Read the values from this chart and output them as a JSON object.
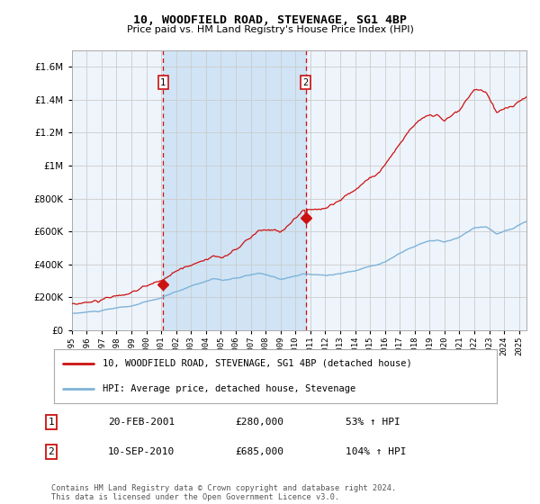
{
  "title": "10, WOODFIELD ROAD, STEVENAGE, SG1 4BP",
  "subtitle": "Price paid vs. HM Land Registry's House Price Index (HPI)",
  "legend_line1": "10, WOODFIELD ROAD, STEVENAGE, SG1 4BP (detached house)",
  "legend_line2": "HPI: Average price, detached house, Stevenage",
  "annotation1_label": "1",
  "annotation1_date": "20-FEB-2001",
  "annotation1_price": "£280,000",
  "annotation1_pct": "53% ↑ HPI",
  "annotation1_year": 2001.13,
  "annotation1_value": 280000,
  "annotation2_label": "2",
  "annotation2_date": "10-SEP-2010",
  "annotation2_price": "£685,000",
  "annotation2_pct": "104% ↑ HPI",
  "annotation2_year": 2010.69,
  "annotation2_value": 685000,
  "ylim": [
    0,
    1700000
  ],
  "xlim_start": 1995.0,
  "xlim_end": 2025.5,
  "hpi_color": "#7eb3d8",
  "price_color": "#cc1111",
  "bg_color": "#ffffff",
  "plot_bg_color": "#eef4fb",
  "shade_color": "#d0e4f5",
  "grid_color": "#cccccc",
  "footer_text": "Contains HM Land Registry data © Crown copyright and database right 2024.\nThis data is licensed under the Open Government Licence v3.0."
}
